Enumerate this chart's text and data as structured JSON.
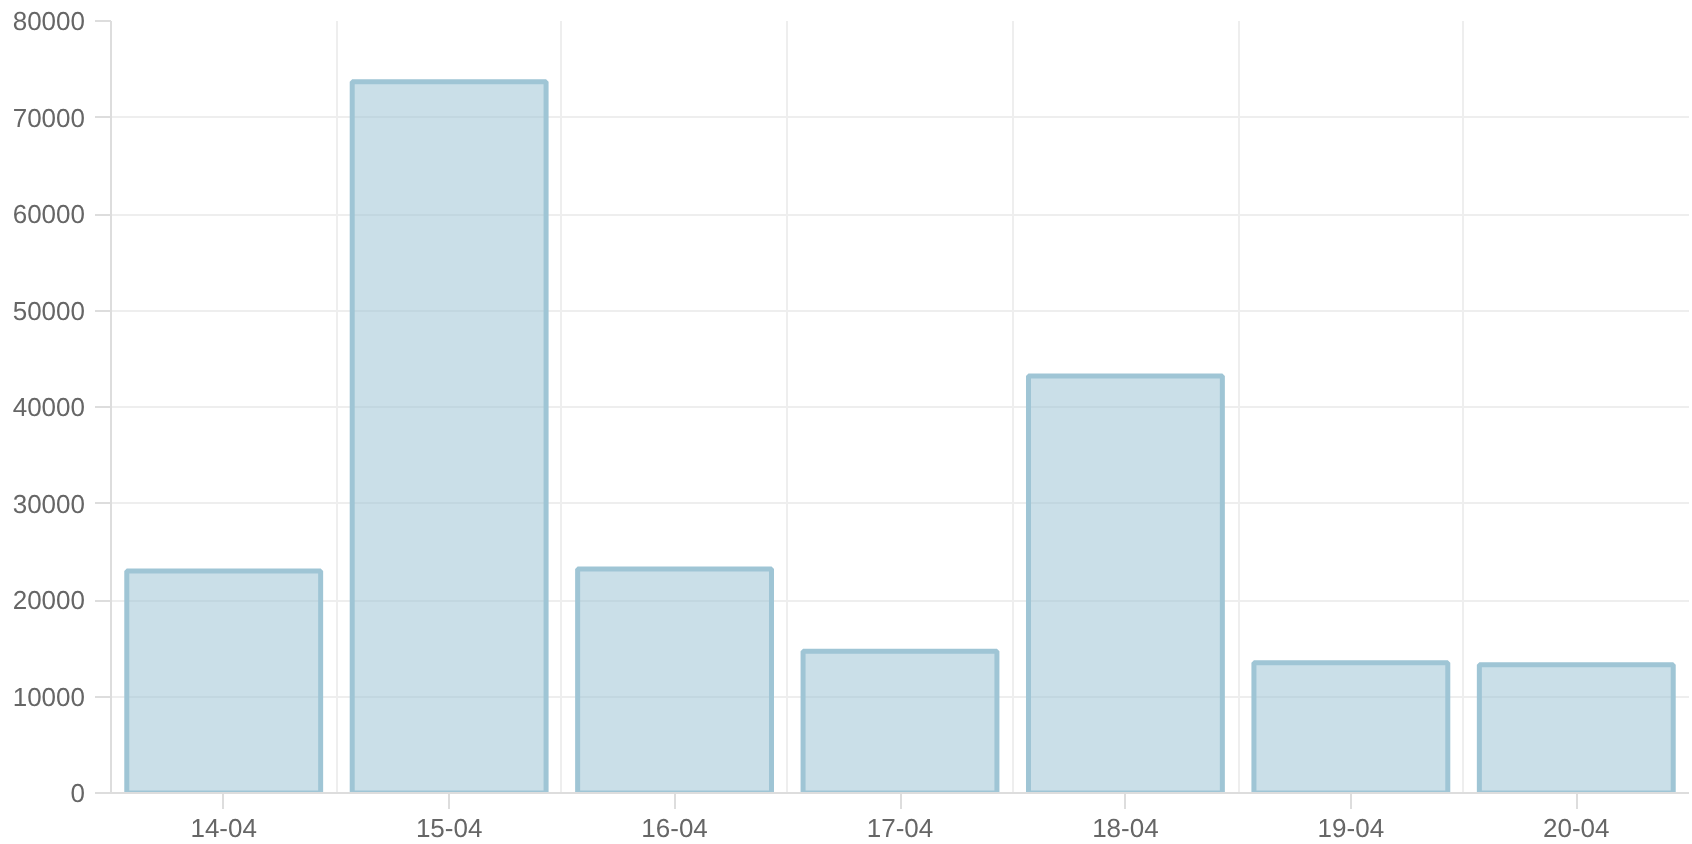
{
  "chart_data": {
    "type": "bar",
    "categories": [
      "14-04",
      "15-04",
      "16-04",
      "17-04",
      "18-04",
      "19-04",
      "20-04"
    ],
    "values": [
      23000,
      73700,
      23200,
      14700,
      43200,
      13500,
      13300
    ],
    "color": "#9fc5d5",
    "ylim": [
      0,
      80000
    ],
    "yticks": [
      0,
      10000,
      20000,
      30000,
      40000,
      50000,
      60000,
      70000,
      80000
    ],
    "grid": true
  }
}
